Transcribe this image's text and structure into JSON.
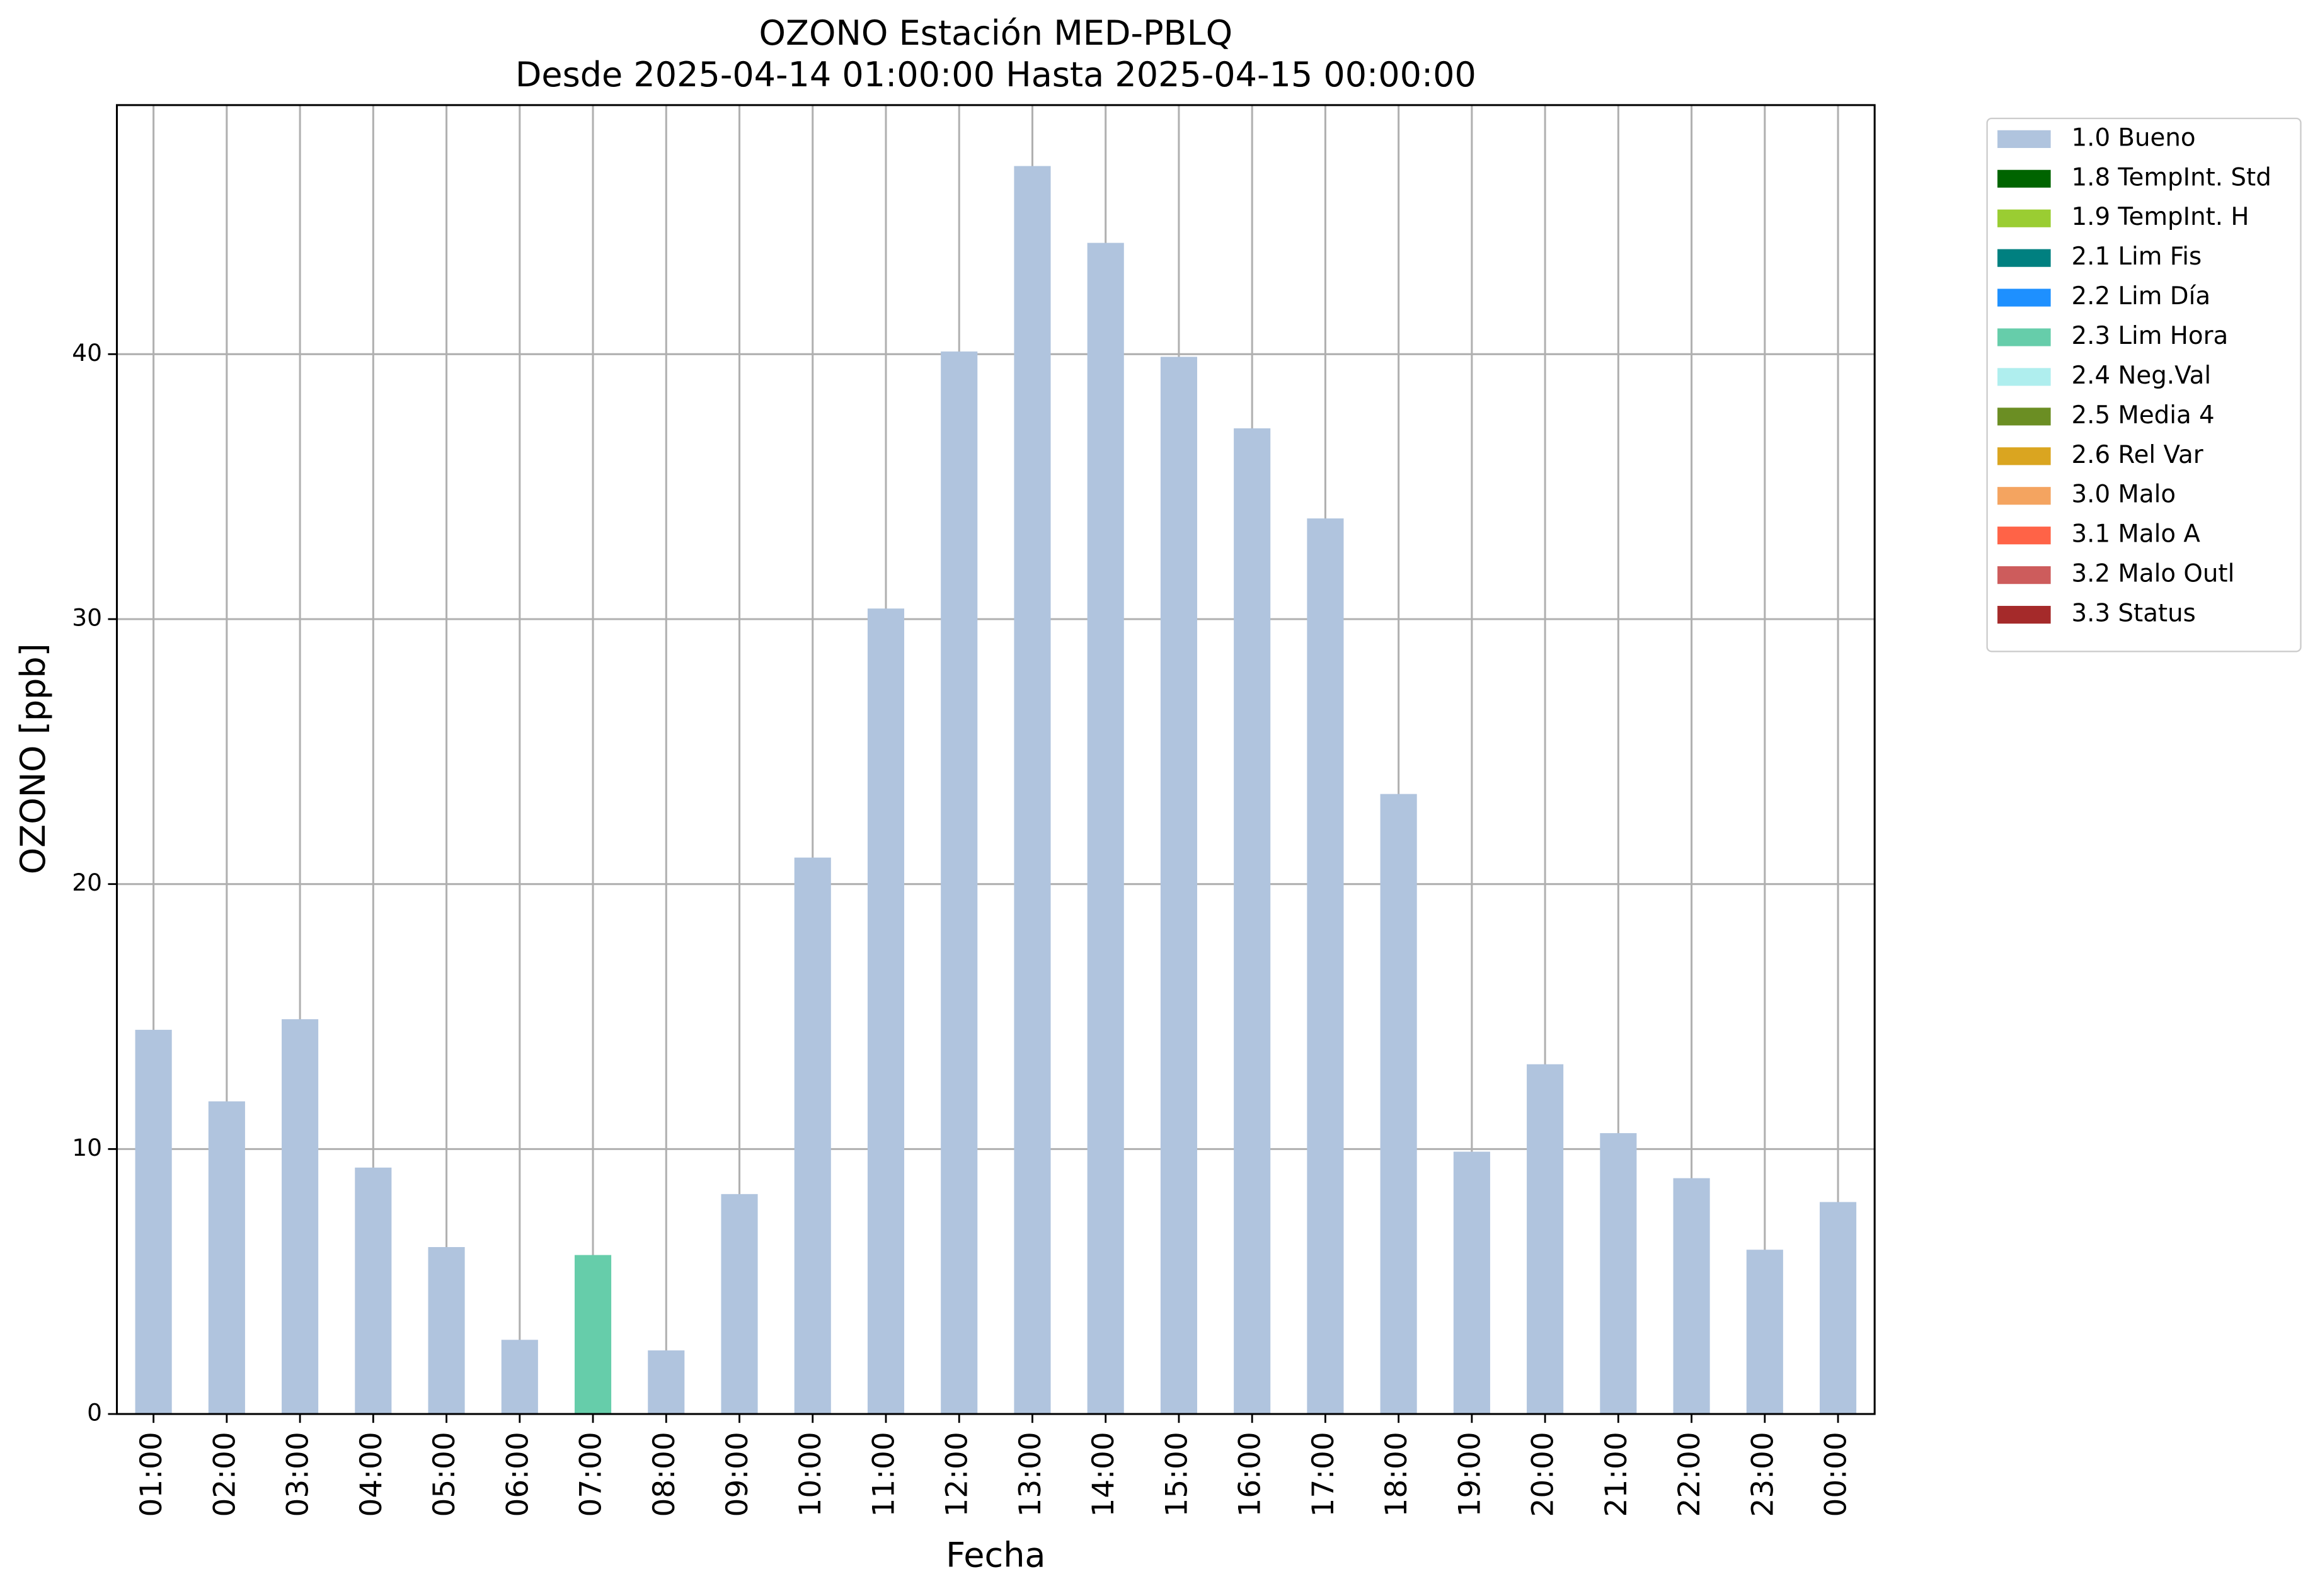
{
  "chart_data": {
    "type": "bar",
    "stacked": true,
    "title": "OZONO Estación MED-PBLQ",
    "subtitle": "Desde 2025-04-14 01:00:00 Hasta 2025-04-15 00:00:00",
    "x_label": "Fecha",
    "y_label": "OZONO [ppb]",
    "categories": [
      "01:00",
      "02:00",
      "03:00",
      "04:00",
      "05:00",
      "06:00",
      "07:00",
      "08:00",
      "09:00",
      "10:00",
      "11:00",
      "12:00",
      "13:00",
      "14:00",
      "15:00",
      "16:00",
      "17:00",
      "18:00",
      "19:00",
      "20:00",
      "21:00",
      "22:00",
      "23:00",
      "00:00"
    ],
    "series": [
      {
        "name": "1.0 Bueno",
        "color": "#b0c4de",
        "values": [
          14.5,
          11.8,
          14.9,
          9.3,
          6.3,
          2.8,
          null,
          2.4,
          8.3,
          21.0,
          30.4,
          40.1,
          47.1,
          44.2,
          39.9,
          37.2,
          33.8,
          23.4,
          9.9,
          13.2,
          10.6,
          8.9,
          6.2,
          8.0
        ]
      },
      {
        "name": "1.8 TempInt. Std",
        "color": "#006400",
        "values": [
          null,
          null,
          null,
          null,
          null,
          null,
          null,
          null,
          null,
          null,
          null,
          null,
          null,
          null,
          null,
          null,
          null,
          null,
          null,
          null,
          null,
          null,
          null,
          null
        ]
      },
      {
        "name": "1.9 TempInt. H",
        "color": "#9acd32",
        "values": [
          null,
          null,
          null,
          null,
          null,
          null,
          null,
          null,
          null,
          null,
          null,
          null,
          null,
          null,
          null,
          null,
          null,
          null,
          null,
          null,
          null,
          null,
          null,
          null
        ]
      },
      {
        "name": "2.1 Lim Fis",
        "color": "#008080",
        "values": [
          null,
          null,
          null,
          null,
          null,
          null,
          null,
          null,
          null,
          null,
          null,
          null,
          null,
          null,
          null,
          null,
          null,
          null,
          null,
          null,
          null,
          null,
          null,
          null
        ]
      },
      {
        "name": "2.2 Lim Día",
        "color": "#1e90ff",
        "values": [
          null,
          null,
          null,
          null,
          null,
          null,
          null,
          null,
          null,
          null,
          null,
          null,
          null,
          null,
          null,
          null,
          null,
          null,
          null,
          null,
          null,
          null,
          null,
          null
        ]
      },
      {
        "name": "2.3 Lim Hora",
        "color": "#66cdaa",
        "values": [
          null,
          null,
          null,
          null,
          null,
          null,
          6.0,
          null,
          null,
          null,
          null,
          null,
          null,
          null,
          null,
          null,
          null,
          null,
          null,
          null,
          null,
          null,
          null,
          null
        ]
      },
      {
        "name": "2.4 Neg.Val",
        "color": "#afeeee",
        "values": [
          null,
          null,
          null,
          null,
          null,
          null,
          null,
          null,
          null,
          null,
          null,
          null,
          null,
          null,
          null,
          null,
          null,
          null,
          null,
          null,
          null,
          null,
          null,
          null
        ]
      },
      {
        "name": "2.5 Media 4",
        "color": "#6b8e23",
        "values": [
          null,
          null,
          null,
          null,
          null,
          null,
          null,
          null,
          null,
          null,
          null,
          null,
          null,
          null,
          null,
          null,
          null,
          null,
          null,
          null,
          null,
          null,
          null,
          null
        ]
      },
      {
        "name": "2.6 Rel Var",
        "color": "#daa520",
        "values": [
          null,
          null,
          null,
          null,
          null,
          null,
          null,
          null,
          null,
          null,
          null,
          null,
          null,
          null,
          null,
          null,
          null,
          null,
          null,
          null,
          null,
          null,
          null,
          null
        ]
      },
      {
        "name": "3.0 Malo",
        "color": "#f4a460",
        "values": [
          null,
          null,
          null,
          null,
          null,
          null,
          null,
          null,
          null,
          null,
          null,
          null,
          null,
          null,
          null,
          null,
          null,
          null,
          null,
          null,
          null,
          null,
          null,
          null
        ]
      },
      {
        "name": "3.1 Malo A",
        "color": "#ff6347",
        "values": [
          null,
          null,
          null,
          null,
          null,
          null,
          null,
          null,
          null,
          null,
          null,
          null,
          null,
          null,
          null,
          null,
          null,
          null,
          null,
          null,
          null,
          null,
          null,
          null
        ]
      },
      {
        "name": "3.2 Malo Outl",
        "color": "#cd5c5c",
        "values": [
          null,
          null,
          null,
          null,
          null,
          null,
          null,
          null,
          null,
          null,
          null,
          null,
          null,
          null,
          null,
          null,
          null,
          null,
          null,
          null,
          null,
          null,
          null,
          null
        ]
      },
      {
        "name": "3.3 Status",
        "color": "#a52a2a",
        "values": [
          null,
          null,
          null,
          null,
          null,
          null,
          null,
          null,
          null,
          null,
          null,
          null,
          null,
          null,
          null,
          null,
          null,
          null,
          null,
          null,
          null,
          null,
          null,
          null
        ]
      }
    ],
    "ylim": [
      0,
      49.4
    ],
    "yticks": [
      0,
      10,
      20,
      30,
      40
    ],
    "grid": true,
    "legend": "outside-right"
  }
}
